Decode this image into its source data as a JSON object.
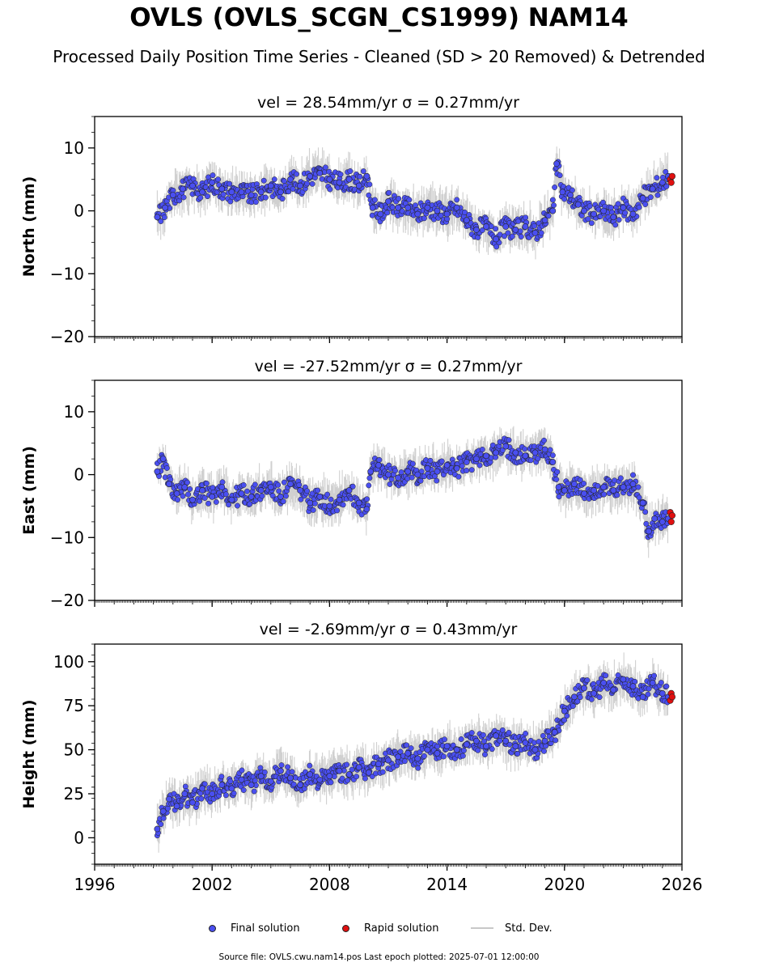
{
  "figure": {
    "title": "OVLS (OVLS_SCGN_CS1999) NAM14",
    "subtitle": "Processed Daily Position Time Series - Cleaned (SD > 20 Removed) & Detrended",
    "source_note": "Source file: OVLS.cwu.nam14.pos  Last epoch plotted: 2025-07-01 12:00:00",
    "colors": {
      "final": "#4a4ff0",
      "rapid": "#e01010",
      "stddev": "#c8c8c8",
      "edge": "#222222"
    }
  },
  "legend": {
    "final_label": "Final solution",
    "rapid_label": "Rapid solution",
    "std_label": "Std. Dev."
  },
  "chart_data": [
    {
      "type": "scatter",
      "component": "north",
      "title": "vel = 28.54mm/yr   σ = 0.27mm/yr",
      "ylabel": "North (mm)",
      "xlabel": "",
      "xlim": [
        1996,
        2026
      ],
      "ylim": [
        -20,
        15
      ],
      "yticks": [
        -20,
        -10,
        0,
        10
      ],
      "xticks": [
        1996,
        2002,
        2008,
        2014,
        2020,
        2026
      ],
      "show_xtick_labels": false,
      "grid": false,
      "series": [
        {
          "name": "Final solution",
          "x": [
            1999.2,
            1999.6,
            2000.0,
            2000.5,
            2001.0,
            2001.5,
            2002.0,
            2002.5,
            2003.0,
            2003.5,
            2004.0,
            2004.5,
            2005.0,
            2005.5,
            2006.0,
            2006.5,
            2007.0,
            2007.5,
            2008.0,
            2008.5,
            2009.0,
            2009.5,
            2009.9,
            2010.2,
            2010.6,
            2011.0,
            2011.5,
            2012.0,
            2012.5,
            2013.0,
            2013.5,
            2014.0,
            2014.5,
            2015.0,
            2015.5,
            2016.0,
            2016.5,
            2017.0,
            2017.5,
            2018.0,
            2018.5,
            2019.0,
            2019.4,
            2019.6,
            2019.9,
            2020.3,
            2020.7,
            2021.0,
            2021.5,
            2022.0,
            2022.5,
            2023.0,
            2023.5,
            2024.0,
            2024.5,
            2025.0,
            2025.3
          ],
          "y": [
            -1.0,
            0.5,
            2.5,
            3.5,
            4.0,
            3.0,
            4.5,
            3.5,
            3.0,
            3.0,
            2.5,
            3.0,
            4.0,
            3.0,
            5.0,
            4.0,
            5.5,
            6.0,
            5.0,
            4.5,
            5.0,
            4.0,
            5.5,
            0.5,
            -0.5,
            1.5,
            0.5,
            0.5,
            -0.5,
            0.5,
            0.0,
            -0.5,
            0.5,
            -1.5,
            -3.0,
            -2.5,
            -4.5,
            -2.5,
            -3.0,
            -2.5,
            -3.5,
            -1.5,
            0.0,
            7.5,
            3.0,
            2.5,
            1.0,
            0.0,
            -0.5,
            0.0,
            -1.0,
            0.5,
            -0.5,
            2.0,
            3.5,
            4.5,
            5.5
          ]
        },
        {
          "name": "Rapid solution",
          "x": [
            2025.4,
            2025.45,
            2025.5
          ],
          "y": [
            5.0,
            4.5,
            5.5
          ]
        }
      ]
    },
    {
      "type": "scatter",
      "component": "east",
      "title": "vel = -27.52mm/yr   σ = 0.27mm/yr",
      "ylabel": "East (mm)",
      "xlabel": "",
      "xlim": [
        1996,
        2026
      ],
      "ylim": [
        -20,
        15
      ],
      "yticks": [
        -20,
        -10,
        0,
        10
      ],
      "xticks": [
        1996,
        2002,
        2008,
        2014,
        2020,
        2026
      ],
      "show_xtick_labels": false,
      "grid": false,
      "series": [
        {
          "name": "Final solution",
          "x": [
            1999.2,
            1999.5,
            1999.8,
            2000.2,
            2000.6,
            2001.0,
            2001.5,
            2002.0,
            2002.5,
            2003.0,
            2003.5,
            2004.0,
            2004.5,
            2005.0,
            2005.5,
            2006.0,
            2006.5,
            2007.0,
            2007.5,
            2008.0,
            2008.5,
            2009.0,
            2009.5,
            2009.9,
            2010.1,
            2010.5,
            2011.0,
            2011.5,
            2012.0,
            2012.5,
            2013.0,
            2013.5,
            2014.0,
            2014.5,
            2015.0,
            2015.5,
            2016.0,
            2016.5,
            2017.0,
            2017.5,
            2018.0,
            2018.5,
            2019.0,
            2019.4,
            2019.7,
            2020.0,
            2020.5,
            2021.0,
            2021.5,
            2022.0,
            2022.5,
            2023.0,
            2023.5,
            2024.0,
            2024.3,
            2024.6,
            2025.0,
            2025.3
          ],
          "y": [
            0.5,
            2.5,
            -1.5,
            -3.0,
            -2.0,
            -4.0,
            -2.5,
            -3.5,
            -2.0,
            -4.0,
            -3.0,
            -3.5,
            -2.5,
            -2.0,
            -3.5,
            -1.5,
            -2.5,
            -4.5,
            -3.5,
            -5.0,
            -4.0,
            -2.5,
            -4.5,
            -5.5,
            0.5,
            1.5,
            0.0,
            -0.5,
            0.5,
            0.0,
            1.0,
            0.5,
            1.5,
            1.0,
            2.0,
            2.5,
            3.0,
            3.5,
            4.5,
            3.5,
            3.0,
            3.5,
            4.0,
            2.0,
            -2.0,
            -2.5,
            -1.5,
            -3.0,
            -2.5,
            -2.0,
            -2.5,
            -2.0,
            -1.5,
            -4.5,
            -9.0,
            -7.0,
            -7.5,
            -7.0
          ]
        },
        {
          "name": "Rapid solution",
          "x": [
            2025.4,
            2025.45,
            2025.5
          ],
          "y": [
            -6.0,
            -7.5,
            -6.5
          ]
        }
      ]
    },
    {
      "type": "scatter",
      "component": "height",
      "title": "vel = -2.69mm/yr   σ = 0.43mm/yr",
      "ylabel": "Height (mm)",
      "xlabel": "",
      "xlim": [
        1996,
        2026
      ],
      "ylim": [
        -15,
        110
      ],
      "yticks": [
        0,
        25,
        50,
        75,
        100
      ],
      "xticks": [
        1996,
        2002,
        2008,
        2014,
        2020,
        2026
      ],
      "show_xtick_labels": true,
      "grid": false,
      "series": [
        {
          "name": "Final solution",
          "x": [
            1999.2,
            1999.5,
            1999.8,
            2000.2,
            2000.6,
            2001.0,
            2001.5,
            2002.0,
            2002.5,
            2003.0,
            2003.5,
            2004.0,
            2004.5,
            2005.0,
            2005.5,
            2006.0,
            2006.5,
            2007.0,
            2007.5,
            2008.0,
            2008.5,
            2009.0,
            2009.5,
            2010.0,
            2010.5,
            2011.0,
            2011.5,
            2012.0,
            2012.5,
            2013.0,
            2013.5,
            2014.0,
            2014.5,
            2015.0,
            2015.5,
            2016.0,
            2016.5,
            2017.0,
            2017.5,
            2018.0,
            2018.5,
            2019.0,
            2019.5,
            2020.0,
            2020.5,
            2021.0,
            2021.5,
            2022.0,
            2022.5,
            2023.0,
            2023.5,
            2024.0,
            2024.5,
            2025.0,
            2025.3
          ],
          "y": [
            5,
            15,
            22,
            18,
            25,
            20,
            28,
            25,
            30,
            28,
            33,
            30,
            35,
            32,
            38,
            34,
            30,
            36,
            33,
            35,
            38,
            36,
            40,
            37,
            42,
            44,
            46,
            48,
            45,
            50,
            48,
            52,
            50,
            53,
            55,
            52,
            58,
            55,
            52,
            54,
            50,
            55,
            60,
            72,
            80,
            85,
            82,
            88,
            84,
            90,
            86,
            80,
            88,
            82,
            80
          ]
        },
        {
          "name": "Rapid solution",
          "x": [
            2025.4,
            2025.45,
            2025.5
          ],
          "y": [
            78,
            82,
            80
          ]
        }
      ]
    }
  ]
}
